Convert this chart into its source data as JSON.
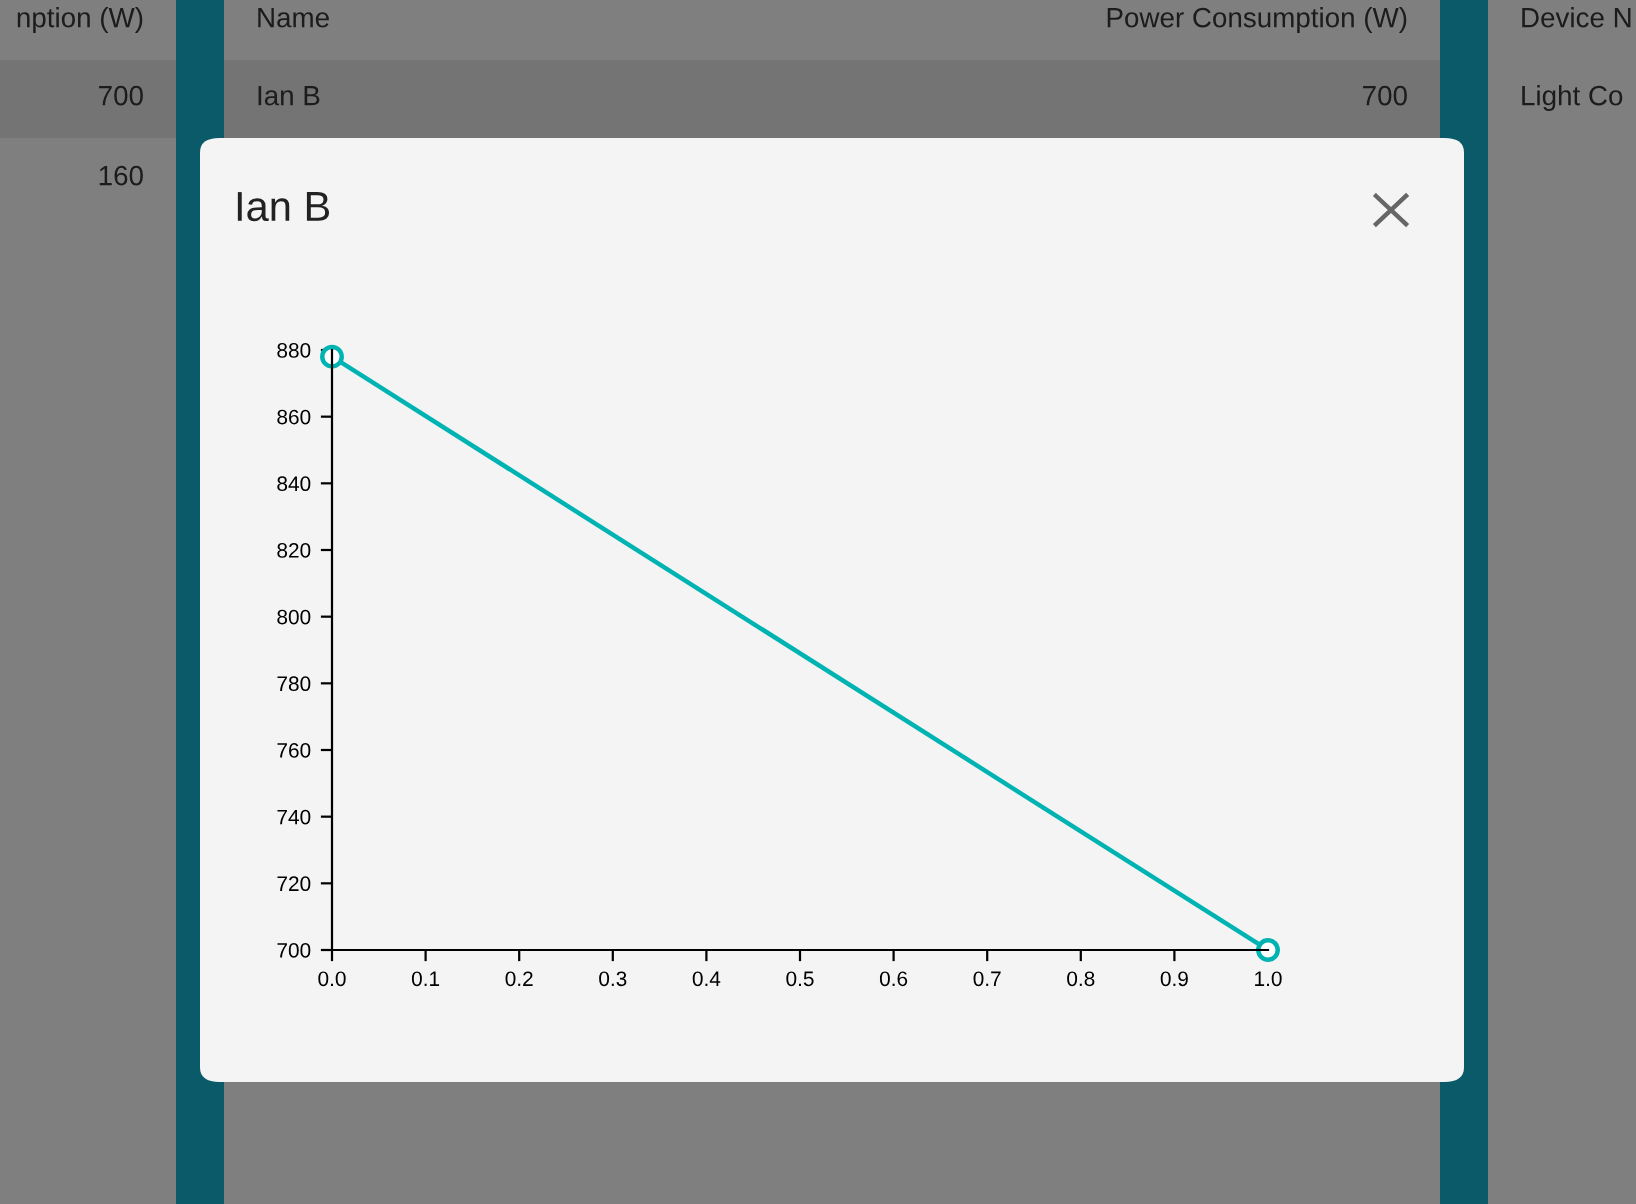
{
  "chart_data": {
    "type": "line",
    "title": "Ian B",
    "x": [
      0,
      1
    ],
    "series": [
      {
        "color": "#00b3b3",
        "values": [
          878,
          700
        ]
      }
    ],
    "xlim": [
      0,
      1
    ],
    "xticks": [
      {
        "value": 0,
        "label": "0.0"
      },
      {
        "value": 0.1,
        "label": "0.1"
      },
      {
        "value": 0.2,
        "label": "0.2"
      },
      {
        "value": 0.3,
        "label": "0.3"
      },
      {
        "value": 0.4,
        "label": "0.4"
      },
      {
        "value": 0.5,
        "label": "0.5"
      },
      {
        "value": 0.6,
        "label": "0.6"
      },
      {
        "value": 0.7,
        "label": "0.7"
      },
      {
        "value": 0.8,
        "label": "0.8"
      },
      {
        "value": 0.9,
        "label": "0.9"
      },
      {
        "value": 1,
        "label": "1.0"
      }
    ],
    "ylim": [
      700,
      880
    ],
    "yticks": [
      700,
      720,
      740,
      760,
      780,
      800,
      820,
      840,
      860,
      880
    ],
    "marker": "circle",
    "line_style": "solid",
    "grid": false,
    "legend": false,
    "annotations": [
      "nption (W)",
      "700",
      "160",
      "Name",
      "Power Consumption (W)",
      "Ian B",
      "700",
      "Device N",
      "Light Co"
    ]
  }
}
